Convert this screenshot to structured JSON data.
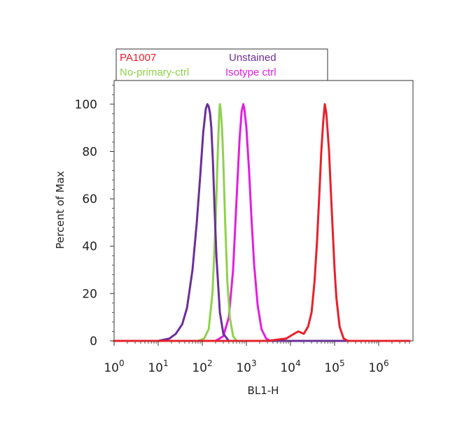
{
  "chart_data": {
    "type": "line",
    "xlabel": "BL1-H",
    "ylabel": "Percent of Max",
    "x_scale": "log",
    "x_range": [
      1,
      5000000
    ],
    "ylim": [
      0,
      110
    ],
    "x_ticks": [
      {
        "value": 1,
        "base": "10",
        "exp": "0"
      },
      {
        "value": 10,
        "base": "10",
        "exp": "1"
      },
      {
        "value": 100,
        "base": "10",
        "exp": "2"
      },
      {
        "value": 1000,
        "base": "10",
        "exp": "3"
      },
      {
        "value": 10000,
        "base": "10",
        "exp": "4"
      },
      {
        "value": 100000,
        "base": "10",
        "exp": "5"
      },
      {
        "value": 1000000,
        "base": "10",
        "exp": "6"
      }
    ],
    "y_ticks": [
      0,
      20,
      40,
      60,
      80,
      100
    ],
    "grid": false,
    "legend": {
      "placement": "top-left, above plot",
      "entries": [
        {
          "label": "PA1007",
          "color": "#e8202a"
        },
        {
          "label": "Unstained",
          "color": "#6a2f9a"
        },
        {
          "label": "No-primary-ctrl",
          "color": "#8fd14f"
        },
        {
          "label": "Isotype ctrl",
          "color": "#e11fe0"
        }
      ]
    },
    "series": [
      {
        "name": "PA1007",
        "color": "#e8202a",
        "x": [
          1,
          3000,
          8000,
          12000,
          15000,
          20000,
          25000,
          30000,
          35000,
          40000,
          45000,
          50000,
          55000,
          60000,
          65000,
          70000,
          75000,
          80000,
          90000,
          100000,
          110000,
          130000,
          160000,
          200000,
          5000000
        ],
        "y": [
          0,
          0,
          1,
          3,
          4,
          3,
          6,
          12,
          25,
          42,
          62,
          80,
          92,
          100,
          96,
          88,
          80,
          68,
          48,
          30,
          18,
          6,
          1,
          0,
          0
        ]
      },
      {
        "name": "Unstained",
        "color": "#6a2f9a",
        "x": [
          1,
          10,
          18,
          25,
          35,
          45,
          60,
          75,
          90,
          105,
          120,
          130,
          140,
          150,
          160,
          175,
          190,
          210,
          250,
          300,
          400,
          5000000
        ],
        "y": [
          0,
          0,
          1,
          3,
          7,
          14,
          30,
          50,
          70,
          88,
          98,
          100,
          99,
          96,
          90,
          75,
          55,
          35,
          12,
          3,
          0,
          0
        ]
      },
      {
        "name": "No-primary-ctrl",
        "color": "#8fd14f",
        "x": [
          1,
          80,
          110,
          140,
          170,
          200,
          220,
          240,
          250,
          260,
          280,
          300,
          330,
          370,
          420,
          500,
          600,
          5000000
        ],
        "y": [
          0,
          0,
          1,
          5,
          20,
          50,
          75,
          95,
          100,
          98,
          90,
          75,
          50,
          25,
          10,
          2,
          0,
          0
        ]
      },
      {
        "name": "Isotype ctrl",
        "color": "#e11fe0",
        "x": [
          1,
          200,
          300,
          400,
          500,
          600,
          700,
          780,
          850,
          900,
          1000,
          1150,
          1300,
          1500,
          1800,
          2200,
          2800,
          3500,
          5000000
        ],
        "y": [
          0,
          0,
          2,
          10,
          30,
          60,
          85,
          97,
          100,
          98,
          90,
          72,
          52,
          32,
          15,
          5,
          1,
          0,
          0
        ]
      }
    ]
  }
}
